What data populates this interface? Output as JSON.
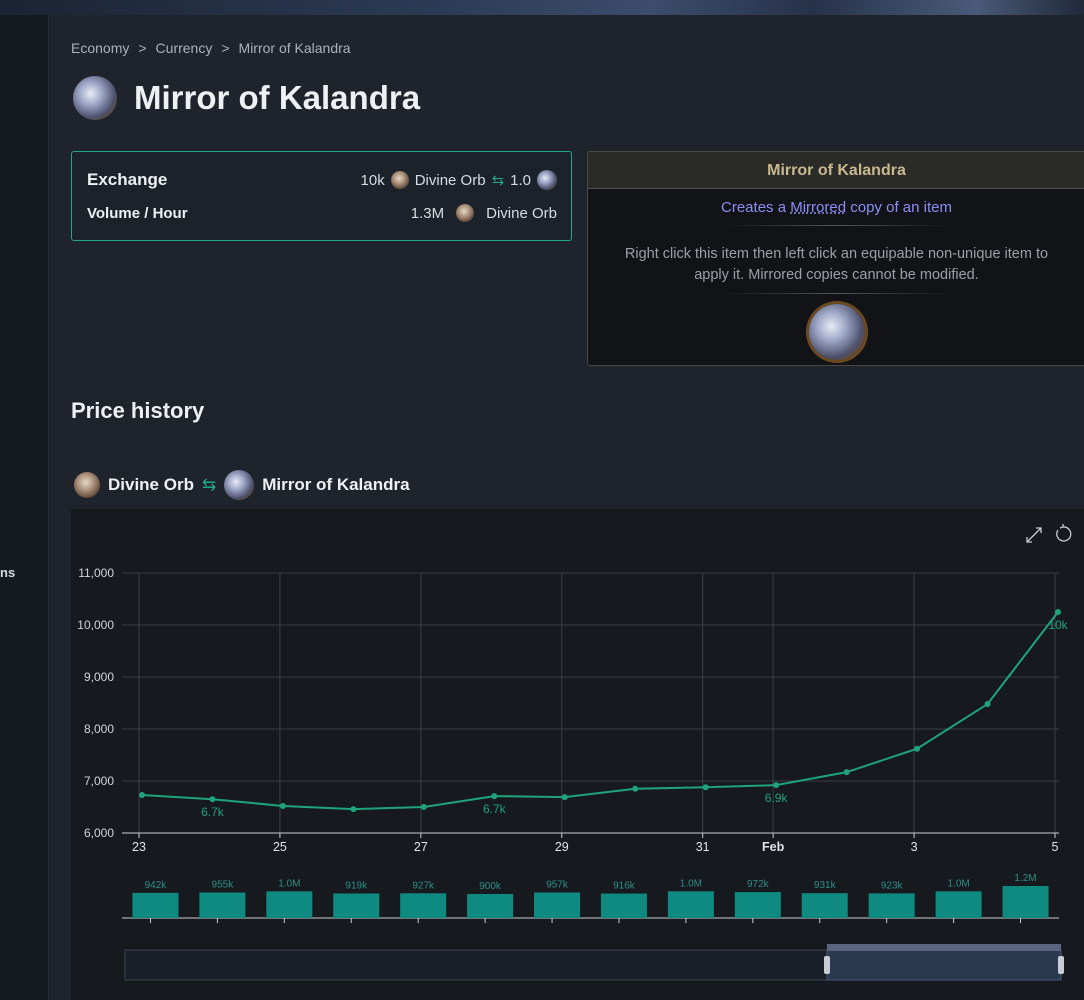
{
  "sidebar_fragment": "ns",
  "breadcrumb": {
    "items": [
      "Economy",
      "Currency",
      "Mirror of Kalandra"
    ],
    "separator": ">"
  },
  "title": "Mirror of Kalandra",
  "exchange": {
    "label": "Exchange",
    "amount": "10k",
    "currency": "Divine Orb",
    "rate": "1.0"
  },
  "volume": {
    "label": "Volume / Hour",
    "amount": "1.3M",
    "currency": "Divine Orb"
  },
  "item_card": {
    "name": "Mirror of Kalandra",
    "effect_prefix": "Creates a",
    "effect_keyword": "Mirrored",
    "effect_suffix": "copy of an item",
    "description": "Right click this item then left click an equipable non-unique item to apply it. Mirrored copies cannot be modified."
  },
  "section_title": "Price history",
  "pair": {
    "from": "Divine Orb",
    "to": "Mirror of Kalandra"
  },
  "chart_data": {
    "type": "line",
    "categories": [
      "23",
      null,
      "25",
      null,
      "27",
      null,
      "29",
      null,
      "31",
      "Feb",
      null,
      "3",
      null,
      "5"
    ],
    "values": [
      6730,
      6650,
      6520,
      6460,
      6500,
      6710,
      6690,
      6850,
      6880,
      6920,
      7170,
      7620,
      8480,
      10250
    ],
    "value_labels": [
      null,
      "6.7k",
      null,
      null,
      null,
      "6.7k",
      null,
      null,
      null,
      "6.9k",
      null,
      null,
      null,
      "10k"
    ],
    "color": "#1fa37a",
    "ylim": [
      6000,
      11000
    ],
    "yticks": [
      {
        "value": 6000,
        "label": "6,000"
      },
      {
        "value": 7000,
        "label": "7,000"
      },
      {
        "value": 8000,
        "label": "8,000"
      },
      {
        "value": 9000,
        "label": "9,000"
      },
      {
        "value": 10000,
        "label": "10,000"
      },
      {
        "value": 11000,
        "label": "11,000"
      }
    ],
    "grid": true,
    "volume": {
      "values": [
        942000,
        955000,
        1000000,
        919000,
        927000,
        900000,
        957000,
        916000,
        1000000,
        972000,
        931000,
        923000,
        1000000,
        1200000
      ],
      "value_labels": [
        "942k",
        "955k",
        "1.0M",
        "919k",
        "927k",
        "900k",
        "957k",
        "916k",
        "1.0M",
        "972k",
        "931k",
        "923k",
        "1.0M",
        "1.2M"
      ],
      "color": "#0e8a80"
    }
  }
}
